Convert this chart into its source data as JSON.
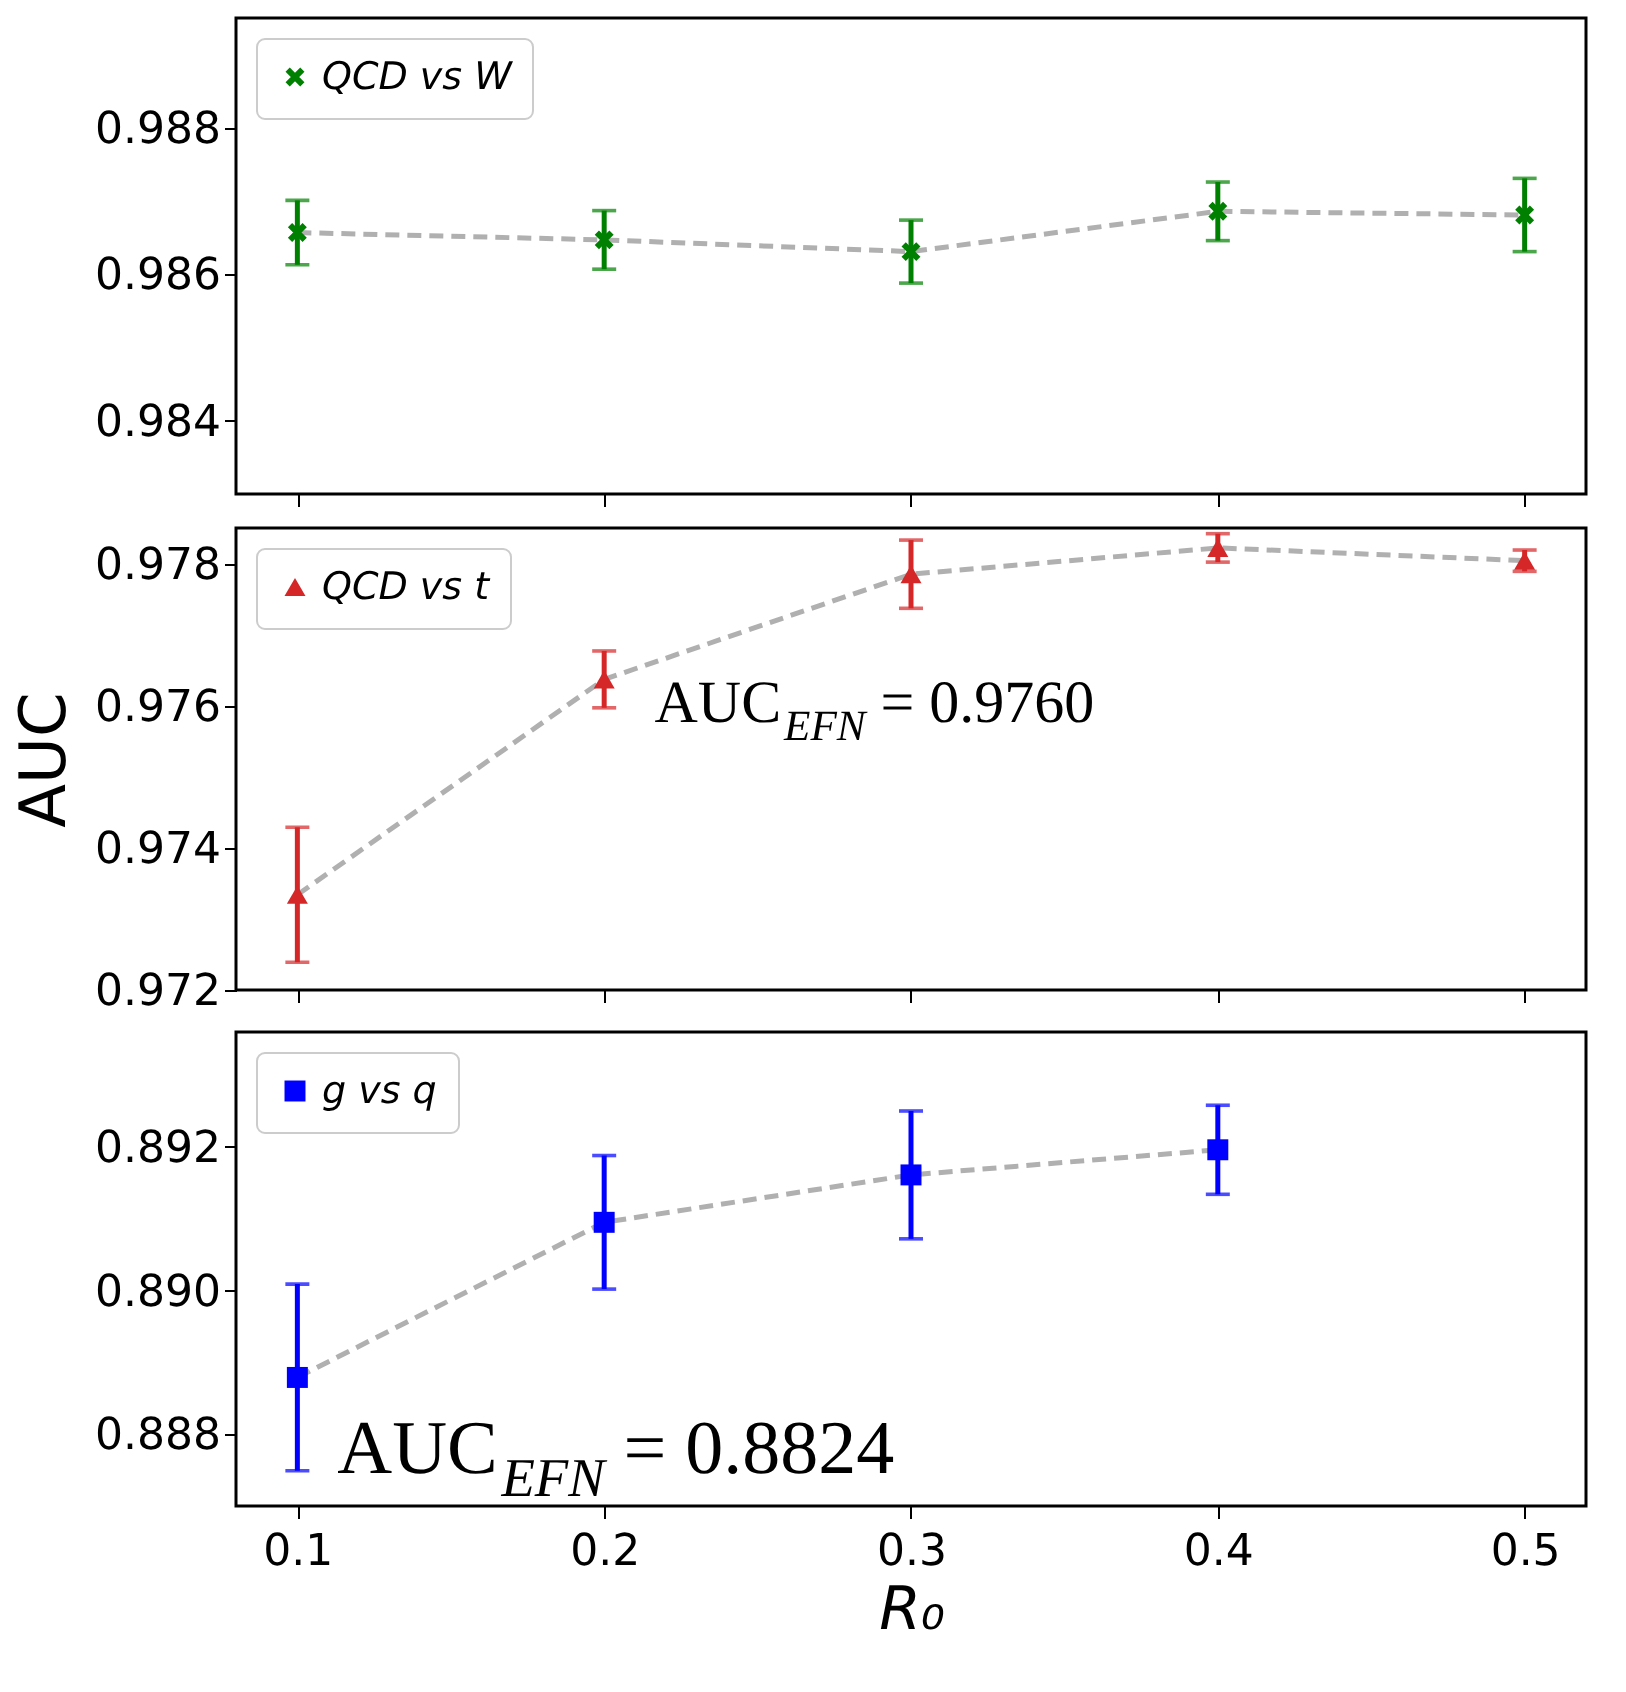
{
  "chart_data": [
    {
      "type": "scatter",
      "x": [
        0.1,
        0.2,
        0.3,
        0.4,
        0.5
      ],
      "xlim": [
        0.08,
        0.52
      ],
      "xticks": [
        0.1,
        0.2,
        0.3,
        0.4,
        0.5
      ],
      "ylim": [
        0.983,
        0.9895
      ],
      "yticks": [
        0.984,
        0.986,
        0.988
      ],
      "tick_labels": "y",
      "grid": false,
      "legend": "top left",
      "series": [
        {
          "type": "line",
          "color": "#b0b0b0",
          "line_style": "dashed",
          "marker": "none",
          "values": [
            0.98657,
            0.98647,
            0.98631,
            0.98686,
            0.98681
          ]
        },
        {
          "type": "scatter",
          "name": "QCD vs W",
          "color": "#008000",
          "marker": "cross",
          "values": [
            0.98657,
            0.98647,
            0.98631,
            0.98686,
            0.98681
          ],
          "errors": [
            0.00044,
            0.0004,
            0.00043,
            0.0004,
            0.0005
          ]
        }
      ]
    },
    {
      "type": "scatter",
      "x": [
        0.1,
        0.2,
        0.3,
        0.4,
        0.5
      ],
      "xlim": [
        0.08,
        0.52
      ],
      "xticks": [
        0.1,
        0.2,
        0.3,
        0.4,
        0.5
      ],
      "ylim": [
        0.972,
        0.9785
      ],
      "yticks": [
        0.972,
        0.974,
        0.976,
        0.978
      ],
      "ylabel": "AUC",
      "tick_labels": "y",
      "grid": false,
      "legend": "top left",
      "annotations": [
        "AUC$_{EFN}$ = 0.9760"
      ],
      "series": [
        {
          "type": "line",
          "color": "#b0b0b0",
          "line_style": "dashed",
          "marker": "none",
          "values": [
            0.97334,
            0.97637,
            0.97785,
            0.97822,
            0.97804
          ]
        },
        {
          "type": "scatter",
          "name": "QCD vs t",
          "color": "#d62728",
          "marker": "triangle",
          "values": [
            0.97334,
            0.97637,
            0.97785,
            0.97822,
            0.97804
          ],
          "errors": [
            0.00095,
            0.0004,
            0.00048,
            0.0002,
            0.00015
          ]
        }
      ]
    },
    {
      "type": "scatter",
      "x": [
        0.1,
        0.2,
        0.3,
        0.4
      ],
      "xlim": [
        0.08,
        0.52
      ],
      "xticks": [
        0.1,
        0.2,
        0.3,
        0.4,
        0.5
      ],
      "ylim": [
        0.887,
        0.8936
      ],
      "yticks": [
        0.888,
        {
          "value": 0.89,
          "label": "0.890"
        },
        0.892
      ],
      "xlabel": "R₀",
      "grid": false,
      "legend": "top left",
      "annotations": [
        "AUC$_{EFN}$ = 0.8824"
      ],
      "series": [
        {
          "type": "line",
          "color": "#b0b0b0",
          "line_style": "dashed",
          "marker": "none",
          "values": [
            0.88879,
            0.89095,
            0.89161,
            0.89196
          ]
        },
        {
          "type": "scatter",
          "name": "g vs q",
          "color": "#0000ff",
          "marker": "square",
          "values": [
            0.88879,
            0.89095,
            0.89161,
            0.89196
          ],
          "errors": [
            0.0013,
            0.00093,
            0.00089,
            0.00062
          ]
        }
      ]
    }
  ]
}
